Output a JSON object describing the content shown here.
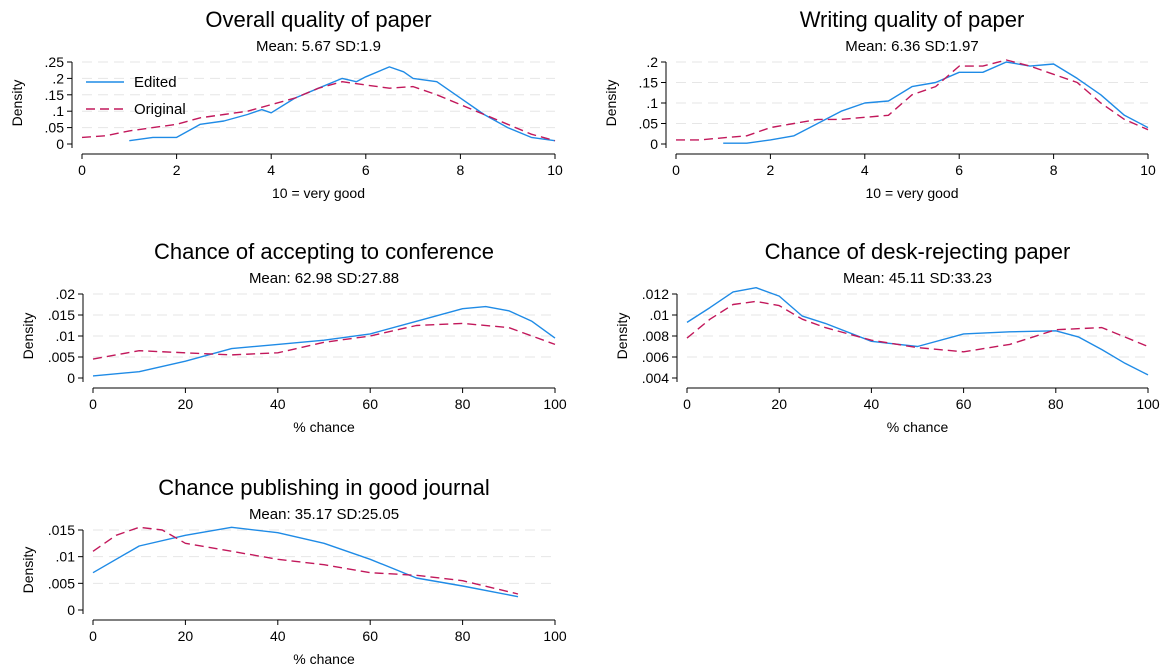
{
  "chart_data": [
    {
      "type": "line",
      "title": "Overall quality of paper",
      "subtitle": "Mean: 5.67 SD:1.9",
      "xlabel": "10 = very good",
      "ylabel": "Density",
      "xlim": [
        0,
        10
      ],
      "ylim": [
        0,
        0.25
      ],
      "xticks": [
        0,
        2,
        4,
        6,
        8,
        10
      ],
      "xtick_labels": [
        "0",
        "2",
        "4",
        "6",
        "8",
        "10"
      ],
      "yticks": [
        0,
        0.05,
        0.1,
        0.15,
        0.2,
        0.25
      ],
      "ytick_labels": [
        "0",
        ".05",
        ".1",
        ".15",
        ".2",
        ".25"
      ],
      "grid": true,
      "legend": "top-left",
      "series": [
        {
          "name": "Edited",
          "color": "#1f8be6",
          "style": "solid",
          "x": [
            1,
            1.5,
            2,
            2.5,
            3,
            3.5,
            3.8,
            4,
            4.5,
            5,
            5.5,
            5.8,
            6,
            6.5,
            6.8,
            7,
            7.5,
            8,
            8.5,
            9,
            9.5,
            10
          ],
          "y": [
            0.01,
            0.02,
            0.02,
            0.06,
            0.07,
            0.09,
            0.105,
            0.095,
            0.14,
            0.17,
            0.2,
            0.19,
            0.205,
            0.235,
            0.22,
            0.2,
            0.19,
            0.14,
            0.09,
            0.05,
            0.02,
            0.01
          ]
        },
        {
          "name": "Original",
          "color": "#c2185b",
          "style": "dashed",
          "x": [
            0,
            0.5,
            1,
            1.5,
            2,
            2.5,
            3,
            3.5,
            4,
            4.5,
            5,
            5.5,
            6,
            6.5,
            7,
            7.5,
            8,
            8.5,
            9,
            9.5,
            10
          ],
          "y": [
            0.02,
            0.025,
            0.04,
            0.05,
            0.06,
            0.08,
            0.09,
            0.1,
            0.12,
            0.14,
            0.17,
            0.19,
            0.18,
            0.17,
            0.175,
            0.15,
            0.12,
            0.09,
            0.06,
            0.03,
            0.01
          ]
        }
      ]
    },
    {
      "type": "line",
      "title": "Writing quality of paper",
      "subtitle": "Mean: 6.36 SD:1.97",
      "xlabel": "10 = very good",
      "ylabel": "Density",
      "xlim": [
        0,
        10
      ],
      "ylim": [
        0,
        0.2
      ],
      "xticks": [
        0,
        2,
        4,
        6,
        8,
        10
      ],
      "xtick_labels": [
        "0",
        "2",
        "4",
        "6",
        "8",
        "10"
      ],
      "yticks": [
        0,
        0.05,
        0.1,
        0.15,
        0.2
      ],
      "ytick_labels": [
        "0",
        ".05",
        ".1",
        ".15",
        ".2"
      ],
      "grid": true,
      "legend": "none",
      "series": [
        {
          "name": "Edited",
          "color": "#1f8be6",
          "style": "solid",
          "x": [
            1,
            1.5,
            2,
            2.5,
            3,
            3.5,
            4,
            4.5,
            5,
            5.5,
            6,
            6.5,
            7,
            7.5,
            8,
            8.5,
            9,
            9.5,
            10
          ],
          "y": [
            0.002,
            0.002,
            0.01,
            0.02,
            0.05,
            0.08,
            0.1,
            0.105,
            0.14,
            0.15,
            0.175,
            0.175,
            0.2,
            0.19,
            0.195,
            0.16,
            0.12,
            0.07,
            0.04
          ]
        },
        {
          "name": "Original",
          "color": "#c2185b",
          "style": "dashed",
          "x": [
            0,
            0.5,
            1,
            1.5,
            2,
            2.5,
            3,
            3.5,
            4,
            4.5,
            5,
            5.5,
            6,
            6.5,
            7,
            7.5,
            8,
            8.5,
            9,
            9.5,
            10
          ],
          "y": [
            0.01,
            0.01,
            0.015,
            0.02,
            0.04,
            0.05,
            0.06,
            0.06,
            0.065,
            0.07,
            0.12,
            0.14,
            0.19,
            0.19,
            0.205,
            0.19,
            0.17,
            0.15,
            0.1,
            0.06,
            0.035
          ]
        }
      ]
    },
    {
      "type": "line",
      "title": "Chance of accepting to conference",
      "subtitle": "Mean: 62.98 SD:27.88",
      "xlabel": "% chance",
      "ylabel": "Density",
      "xlim": [
        0,
        100
      ],
      "ylim": [
        0,
        0.02
      ],
      "xticks": [
        0,
        20,
        40,
        60,
        80,
        100
      ],
      "xtick_labels": [
        "0",
        "20",
        "40",
        "60",
        "80",
        "100"
      ],
      "yticks": [
        0,
        0.005,
        0.01,
        0.015,
        0.02
      ],
      "ytick_labels": [
        "0",
        ".005",
        ".01",
        ".015",
        ".02"
      ],
      "grid": true,
      "legend": "none",
      "series": [
        {
          "name": "Edited",
          "color": "#1f8be6",
          "style": "solid",
          "x": [
            0,
            10,
            20,
            30,
            40,
            50,
            60,
            70,
            80,
            85,
            90,
            95,
            100
          ],
          "y": [
            0.0005,
            0.0015,
            0.004,
            0.007,
            0.008,
            0.009,
            0.0105,
            0.0135,
            0.0165,
            0.017,
            0.016,
            0.0135,
            0.0095
          ]
        },
        {
          "name": "Original",
          "color": "#c2185b",
          "style": "dashed",
          "x": [
            0,
            10,
            20,
            30,
            40,
            50,
            60,
            70,
            80,
            90,
            100
          ],
          "y": [
            0.0045,
            0.0065,
            0.006,
            0.0055,
            0.006,
            0.0085,
            0.01,
            0.0125,
            0.013,
            0.012,
            0.008
          ]
        }
      ]
    },
    {
      "type": "line",
      "title": "Chance of desk-rejecting paper",
      "subtitle": "Mean: 45.11 SD:33.23",
      "xlabel": "% chance",
      "ylabel": "Density",
      "xlim": [
        0,
        100
      ],
      "ylim": [
        0.004,
        0.012
      ],
      "xticks": [
        0,
        20,
        40,
        60,
        80,
        100
      ],
      "xtick_labels": [
        "0",
        "20",
        "40",
        "60",
        "80",
        "100"
      ],
      "yticks": [
        0.004,
        0.006,
        0.008,
        0.01,
        0.012
      ],
      "ytick_labels": [
        ".004",
        ".006",
        ".008",
        ".01",
        ".012"
      ],
      "grid": true,
      "legend": "none",
      "series": [
        {
          "name": "Edited",
          "color": "#1f8be6",
          "style": "solid",
          "x": [
            0,
            5,
            10,
            15,
            20,
            25,
            30,
            40,
            50,
            60,
            70,
            80,
            85,
            90,
            95,
            100
          ],
          "y": [
            0.0093,
            0.0107,
            0.0122,
            0.0126,
            0.0118,
            0.0099,
            0.0092,
            0.0075,
            0.007,
            0.0082,
            0.0084,
            0.0085,
            0.0079,
            0.0067,
            0.0054,
            0.0043
          ]
        },
        {
          "name": "Original",
          "color": "#c2185b",
          "style": "dashed",
          "x": [
            0,
            5,
            10,
            15,
            20,
            25,
            30,
            40,
            50,
            60,
            70,
            80,
            90,
            100
          ],
          "y": [
            0.0078,
            0.0096,
            0.011,
            0.0113,
            0.0109,
            0.0096,
            0.0088,
            0.0076,
            0.0069,
            0.0065,
            0.0072,
            0.0086,
            0.0088,
            0.007
          ]
        }
      ]
    },
    {
      "type": "line",
      "title": "Chance publishing in good journal",
      "subtitle": "Mean: 35.17 SD:25.05",
      "xlabel": "% chance",
      "ylabel": "Density",
      "xlim": [
        0,
        100
      ],
      "ylim": [
        0,
        0.015
      ],
      "xticks": [
        0,
        20,
        40,
        60,
        80,
        100
      ],
      "xtick_labels": [
        "0",
        "20",
        "40",
        "60",
        "80",
        "100"
      ],
      "yticks": [
        0,
        0.005,
        0.01,
        0.015
      ],
      "ytick_labels": [
        "0",
        ".005",
        ".01",
        ".015"
      ],
      "grid": true,
      "legend": "none",
      "series": [
        {
          "name": "Edited",
          "color": "#1f8be6",
          "style": "solid",
          "x": [
            0,
            10,
            20,
            30,
            40,
            50,
            60,
            70,
            80,
            92
          ],
          "y": [
            0.007,
            0.012,
            0.014,
            0.0155,
            0.0145,
            0.0125,
            0.0095,
            0.006,
            0.0045,
            0.0025
          ]
        },
        {
          "name": "Original",
          "color": "#c2185b",
          "style": "dashed",
          "x": [
            0,
            5,
            10,
            15,
            20,
            30,
            40,
            50,
            60,
            70,
            80,
            92
          ],
          "y": [
            0.011,
            0.014,
            0.0155,
            0.015,
            0.0125,
            0.011,
            0.0095,
            0.0085,
            0.007,
            0.0065,
            0.0055,
            0.003
          ]
        }
      ]
    }
  ]
}
